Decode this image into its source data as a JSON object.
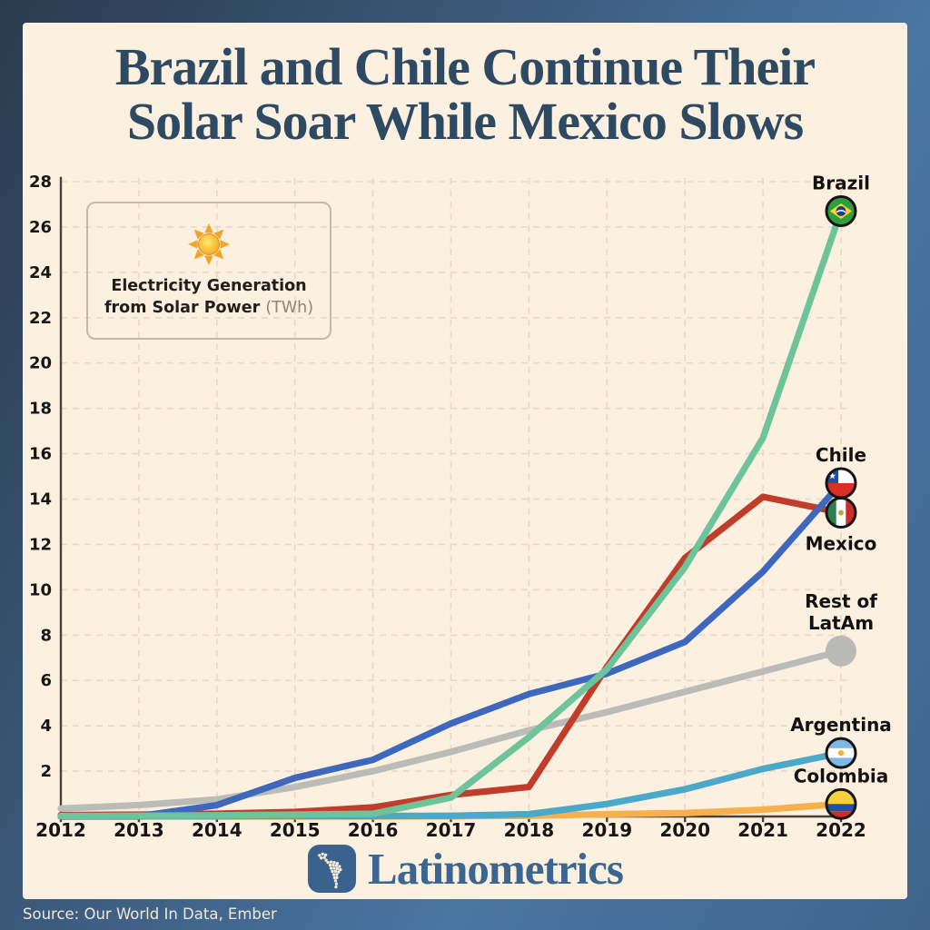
{
  "title": {
    "line1": "Brazil and Chile Continue Their",
    "line2": "Solar Soar While Mexico Slows"
  },
  "legend": {
    "icon": "sun-icon",
    "line1": "Electricity Generation",
    "line2_bold": "from Solar Power",
    "line2_unit": "(TWh)"
  },
  "footer": {
    "brand": "Latinometrics",
    "logo": "latinometrics-map-logo"
  },
  "source": "Source: Our World In Data, Ember",
  "colors": {
    "frame_top": "#2b3b4e",
    "frame_bottom": "#4a76a4",
    "panel_bg": "#fcf0e1",
    "title_text": "#2e4a63",
    "brand_blue": "#3c6590",
    "grid": "#ebd7c5",
    "axis": "#45413a"
  },
  "chart_data": {
    "type": "line",
    "title": "Electricity Generation from Solar Power (TWh)",
    "xlabel": "",
    "ylabel": "TWh",
    "x": [
      2012,
      2013,
      2014,
      2015,
      2016,
      2017,
      2018,
      2019,
      2020,
      2021,
      2022
    ],
    "ylim": [
      0,
      28
    ],
    "yticks": [
      2,
      4,
      6,
      8,
      10,
      12,
      14,
      16,
      18,
      20,
      22,
      24,
      26,
      28
    ],
    "grid": true,
    "legend_position": "end-of-line flags",
    "draw_order": [
      "Rest of LatAm",
      "Colombia",
      "Argentina",
      "Mexico",
      "Chile",
      "Brazil"
    ],
    "series": [
      {
        "name": "Brazil",
        "color": "#6ec49a",
        "flag": "brazil",
        "icon": "brazil-flag-icon",
        "label_lines": [
          "Brazil"
        ],
        "label_side": "above",
        "values": [
          0.02,
          0.03,
          0.05,
          0.08,
          0.12,
          0.83,
          3.5,
          6.5,
          11.0,
          16.7,
          26.7
        ]
      },
      {
        "name": "Chile",
        "color": "#3e68be",
        "flag": "chile",
        "icon": "chile-flag-icon",
        "label_lines": [
          "Chile"
        ],
        "label_side": "above",
        "values": [
          0.0,
          0.01,
          0.5,
          1.7,
          2.5,
          4.1,
          5.4,
          6.3,
          7.7,
          10.8,
          14.7
        ]
      },
      {
        "name": "Mexico",
        "color": "#c13d2b",
        "flag": "mexico",
        "icon": "mexico-flag-icon",
        "label_lines": [
          "Mexico"
        ],
        "label_side": "below",
        "values": [
          0.06,
          0.08,
          0.12,
          0.2,
          0.4,
          0.95,
          1.3,
          6.6,
          11.4,
          14.1,
          13.4
        ]
      },
      {
        "name": "Rest of LatAm",
        "color": "#bbbbb8",
        "flag": "dot",
        "icon": "gray-dot-icon",
        "label_lines": [
          "Rest of",
          "LatAm"
        ],
        "label_side": "above",
        "values": [
          0.35,
          0.5,
          0.75,
          1.3,
          2.0,
          2.85,
          3.8,
          4.6,
          5.5,
          6.4,
          7.3
        ]
      },
      {
        "name": "Argentina",
        "color": "#4aa9c8",
        "flag": "argentina",
        "icon": "argentina-flag-icon",
        "label_lines": [
          "Argentina"
        ],
        "label_side": "above",
        "values": [
          0.01,
          0.01,
          0.01,
          0.02,
          0.02,
          0.03,
          0.1,
          0.55,
          1.2,
          2.1,
          2.8
        ]
      },
      {
        "name": "Colombia",
        "color": "#f7b04b",
        "flag": "colombia",
        "icon": "colombia-flag-icon",
        "label_lines": [
          "Colombia"
        ],
        "label_side": "above",
        "values": [
          0.0,
          0.0,
          0.0,
          0.0,
          0.0,
          0.01,
          0.03,
          0.1,
          0.15,
          0.3,
          0.55
        ]
      }
    ]
  }
}
